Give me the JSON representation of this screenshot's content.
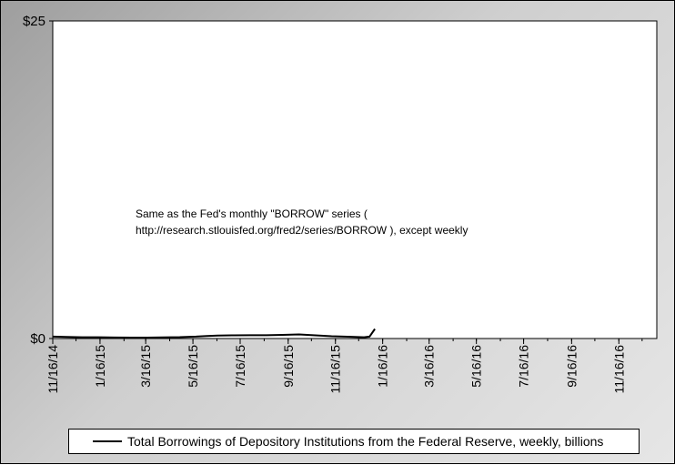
{
  "chart_data": {
    "type": "line",
    "title": "",
    "xlabel": "",
    "ylabel": "",
    "ylim": [
      0,
      25
    ],
    "yticks": [
      "$0",
      "$25"
    ],
    "xlim": [
      "2014-11-16",
      "2017-01-04"
    ],
    "xticks": [
      {
        "date": "2014-11-16",
        "label": "11/16/14"
      },
      {
        "date": "2015-01-16",
        "label": "1/16/15"
      },
      {
        "date": "2015-03-16",
        "label": "3/16/15"
      },
      {
        "date": "2015-05-16",
        "label": "5/16/15"
      },
      {
        "date": "2015-07-16",
        "label": "7/16/15"
      },
      {
        "date": "2015-09-16",
        "label": "9/16/15"
      },
      {
        "date": "2015-11-16",
        "label": "11/16/15"
      },
      {
        "date": "2016-01-16",
        "label": "1/16/16"
      },
      {
        "date": "2016-03-16",
        "label": "3/16/16"
      },
      {
        "date": "2016-05-16",
        "label": "5/16/16"
      },
      {
        "date": "2016-07-16",
        "label": "7/16/16"
      },
      {
        "date": "2016-09-16",
        "label": "9/16/16"
      },
      {
        "date": "2016-11-16",
        "label": "11/16/16"
      }
    ],
    "grid": false,
    "legend_position": "bottom",
    "annotation": {
      "line1": "Same as the Fed's monthly \"BORROW\" series (",
      "line2": "http://research.stlouisfed.org/fred2/series/BORROW ), except weekly"
    },
    "series": [
      {
        "name": "Total Borrowings of Depository Institutions from the Federal Reserve, weekly, billions",
        "color": "#000000",
        "points": [
          {
            "date": "2014-11-16",
            "value": 0.15
          },
          {
            "date": "2014-12-03",
            "value": 0.12
          },
          {
            "date": "2014-12-24",
            "value": 0.1
          },
          {
            "date": "2015-01-14",
            "value": 0.1
          },
          {
            "date": "2015-02-04",
            "value": 0.08
          },
          {
            "date": "2015-02-25",
            "value": 0.07
          },
          {
            "date": "2015-03-18",
            "value": 0.07
          },
          {
            "date": "2015-04-08",
            "value": 0.09
          },
          {
            "date": "2015-04-29",
            "value": 0.11
          },
          {
            "date": "2015-05-20",
            "value": 0.15
          },
          {
            "date": "2015-06-03",
            "value": 0.2
          },
          {
            "date": "2015-06-17",
            "value": 0.23
          },
          {
            "date": "2015-07-08",
            "value": 0.25
          },
          {
            "date": "2015-07-29",
            "value": 0.26
          },
          {
            "date": "2015-08-19",
            "value": 0.26
          },
          {
            "date": "2015-09-09",
            "value": 0.29
          },
          {
            "date": "2015-09-30",
            "value": 0.32
          },
          {
            "date": "2015-10-21",
            "value": 0.25
          },
          {
            "date": "2015-11-11",
            "value": 0.18
          },
          {
            "date": "2015-12-02",
            "value": 0.14
          },
          {
            "date": "2015-12-23",
            "value": 0.1
          },
          {
            "date": "2015-12-30",
            "value": 0.15
          },
          {
            "date": "2016-01-06",
            "value": 0.75
          }
        ]
      }
    ]
  }
}
